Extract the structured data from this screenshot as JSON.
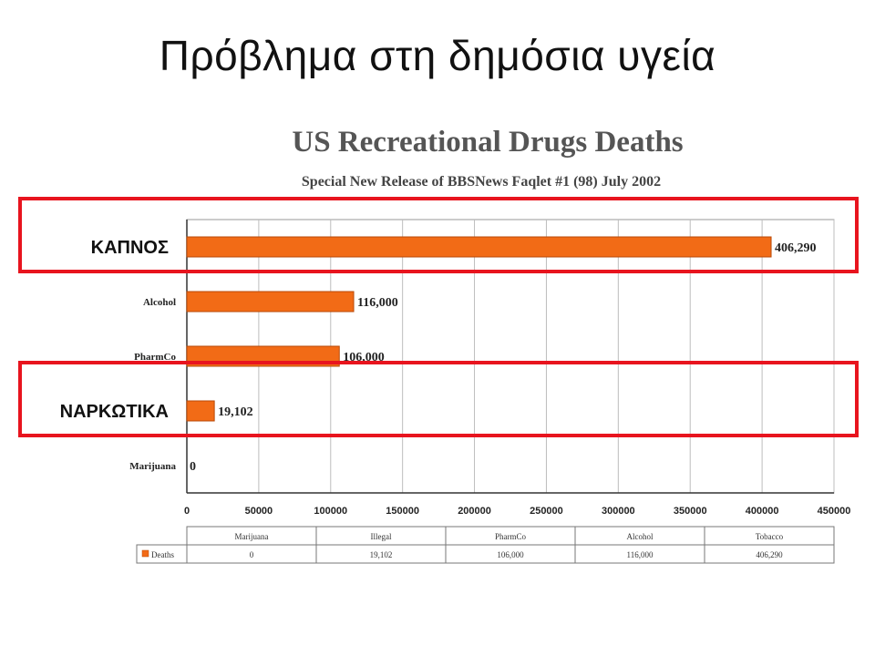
{
  "slide": {
    "title": "Πρόβλημα στη δημόσια υγεία"
  },
  "colors": {
    "bar": "#f26b16",
    "bar_edge": "#b84a08",
    "highlight": "#e8141e",
    "grid": "#bdbdbd"
  },
  "chart_data": {
    "type": "bar",
    "orientation": "horizontal",
    "title": "US Recreational Drugs Deaths",
    "subtitle": "Special New Release of BBSNews Faqlet #1 (98) July 2002",
    "categories": [
      "Tobacco",
      "Alcohol",
      "PharmCo",
      "Illegal",
      "Marijuana"
    ],
    "axis_category_labels": [
      "",
      "Alcohol",
      "PharmCo",
      "",
      "Marijuana"
    ],
    "values": [
      406290,
      116000,
      106000,
      19102,
      0
    ],
    "value_labels": [
      "406,290",
      "116,000",
      "106,000",
      "19,102",
      "0"
    ],
    "xlim": [
      0,
      450000
    ],
    "x_ticks": [
      0,
      50000,
      100000,
      150000,
      200000,
      250000,
      300000,
      350000,
      400000,
      450000
    ],
    "grid": true,
    "legend": {
      "position": "bottom-table",
      "entry": "Deaths"
    },
    "data_table": {
      "headers": [
        "Marijuana",
        "Illegal",
        "PharmCo",
        "Alcohol",
        "Tobacco"
      ],
      "row_label": "Deaths",
      "row": [
        "0",
        "19,102",
        "106,000",
        "116,000",
        "406,290"
      ]
    }
  },
  "highlights": [
    {
      "label": "ΚΑΠΝΟΣ",
      "category": "Tobacco"
    },
    {
      "label": "ΝΑΡΚΩΤΙΚΑ",
      "category": "Illegal"
    }
  ]
}
